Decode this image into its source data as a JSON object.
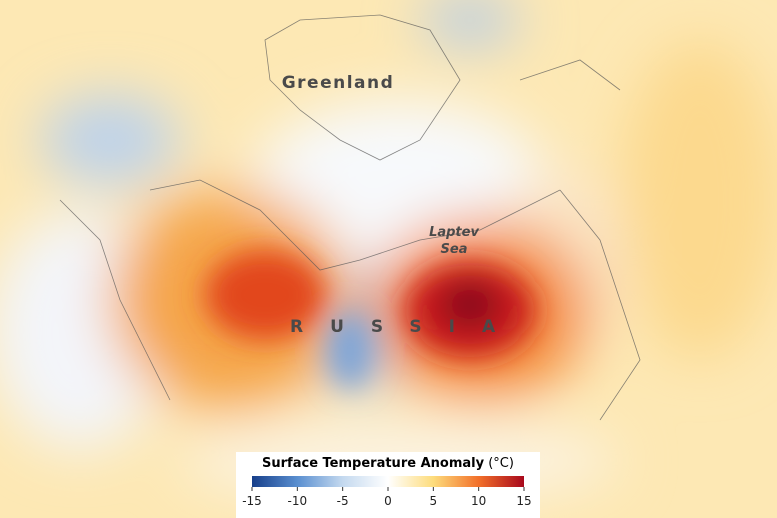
{
  "map": {
    "labels": {
      "greenland": "Greenland",
      "laptev_sea": [
        "Laptev",
        "Sea"
      ],
      "russia": "RUSSIA"
    }
  },
  "legend": {
    "title": "Surface Temperature Anomaly",
    "unit": "(°C)",
    "range": [
      -15,
      15
    ],
    "ticks": [
      -15,
      -10,
      -5,
      0,
      5,
      10,
      15
    ],
    "colors": [
      "#173f8a",
      "#5a8fd0",
      "#c4d9ef",
      "#ffffff",
      "#fddc7c",
      "#f2702a",
      "#a8081c"
    ]
  }
}
